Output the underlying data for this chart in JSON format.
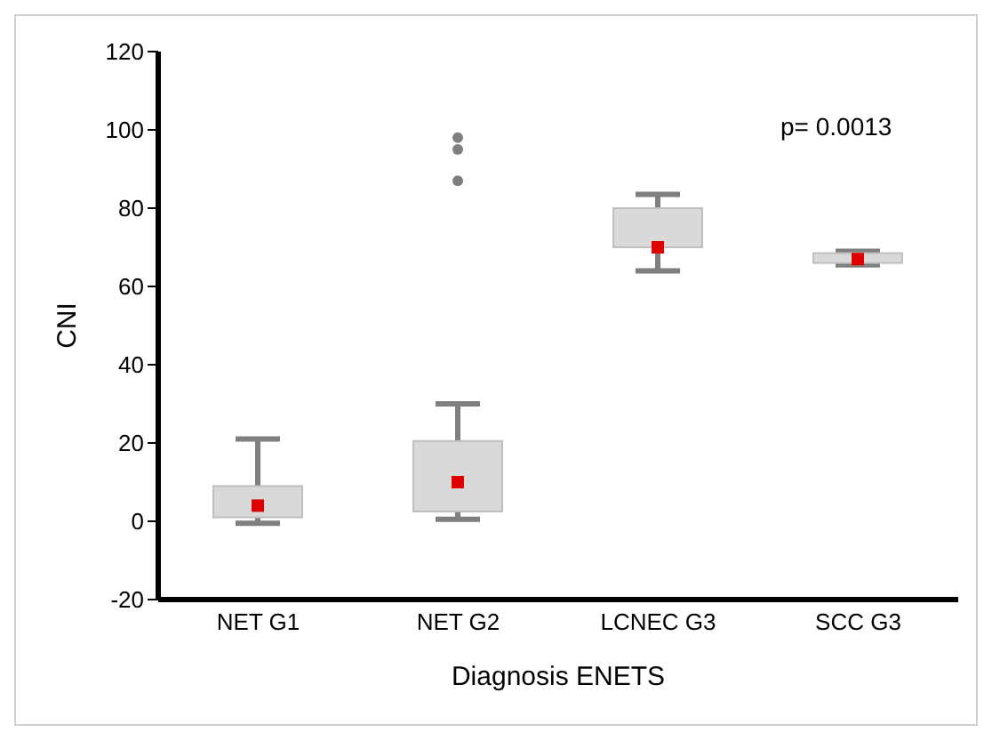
{
  "chart_data": {
    "type": "box",
    "xlabel": "Diagnosis ENETS",
    "ylabel": "CNI",
    "categories": [
      "NET G1",
      "NET G2",
      "LCNEC G3",
      "SCC G3"
    ],
    "boxes": [
      {
        "low": -0.5,
        "q1": 1,
        "q3": 9,
        "high": 21,
        "mean": 4
      },
      {
        "low": 0.5,
        "q1": 2.5,
        "q3": 20.5,
        "high": 30,
        "mean": 10,
        "outliers": [
          98,
          95,
          87
        ]
      },
      {
        "low": 64,
        "q1": 70,
        "q3": 80,
        "high": 83.5,
        "mean": 70
      },
      {
        "low": 65.5,
        "q1": 66,
        "q3": 68.5,
        "high": 69,
        "mean": 67
      }
    ],
    "ylim": [
      -20,
      120
    ],
    "yticks": [
      -20,
      0,
      20,
      40,
      60,
      80,
      100,
      120
    ],
    "annotations": [
      "p= 0.0013"
    ]
  }
}
